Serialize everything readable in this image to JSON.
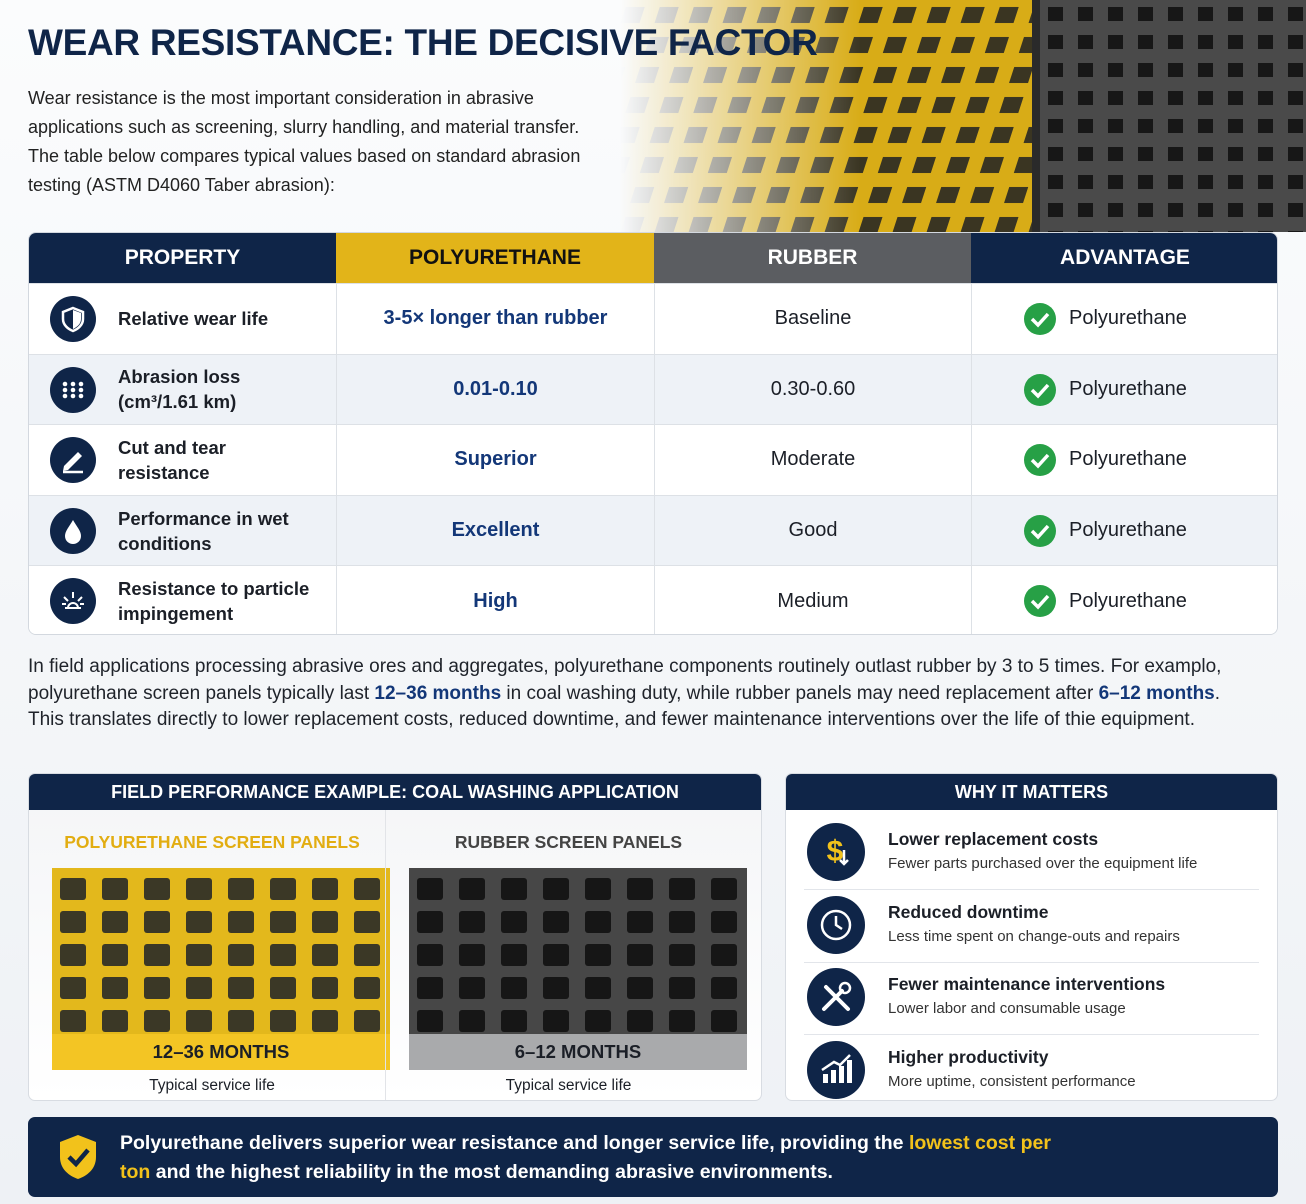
{
  "header": {
    "title": "WEAR RESISTANCE: THE DECISIVE FACTOR",
    "intro": "Wear resistance is the most important consideration in abrasive applications such as screening, slurry handling, and material transfer. The table below compares typical values based on standard abrasion testing (ASTM D4060 Taber abrasion):"
  },
  "table": {
    "headers": [
      "PROPERTY",
      "POLYURETHANE",
      "RUBBER",
      "ADVANTAGE"
    ],
    "rows": [
      [
        "Relative wear life",
        "3-5× longer than rubber",
        "Baseline",
        "Polyurethane"
      ],
      [
        "Abrasion loss (cm³/1.61 km)",
        "0.01-0.10",
        "0.30-0.60",
        "Polyurethane"
      ],
      [
        "Cut and tear resistance",
        "Superior",
        "Moderate",
        "Polyurethane"
      ],
      [
        "Performance in wet conditions",
        "Excellent",
        "Good",
        "Polyurethane"
      ],
      [
        "Resistance to particle impingement",
        "High",
        "Medium",
        "Polyurethane"
      ]
    ]
  },
  "paragraph": [
    "In field applications processing abrasive ores and aggregates, polyurethane components routinely outlast rubber by 3 to 5 times. For examplo, polyurethane screen panels typically last ",
    "12–36 months",
    " in coal washing duty, while rubber panels may need replacement after ",
    "6–12 months",
    ". This translates directly to lower replacement costs, reduced downtime, and fewer maintenance interventions over the life of thie equipment."
  ],
  "field": {
    "title": "FIELD PERFORMANCE EXAMPLE: COAL WASHING APPLICATION",
    "panels": [
      {
        "label": "POLYURETHANE SCREEN PANELS",
        "duration": "12–36 MONTHS",
        "caption": "Typical service life"
      },
      {
        "label": "RUBBER SCREEN PANELS",
        "duration": "6–12 MONTHS",
        "caption": "Typical service life"
      }
    ]
  },
  "why": {
    "title": "WHY IT MATTERS",
    "items": [
      {
        "title": "Lower replacement costs",
        "text": "Fewer parts purchased over the equipment life"
      },
      {
        "title": "Reduced downtime",
        "text": "Less time spent on change-outs and repairs"
      },
      {
        "title": "Fewer maintenance interventions",
        "text": "Lower labor and consumable usage"
      },
      {
        "title": "Higher productivity",
        "text": "More uptime, consistent performance"
      }
    ]
  },
  "footer": [
    "Polyurethane delivers superior wear resistance and longer service life, providing the ",
    "lowest cost per ton",
    " and the highest reliability in the most demanding abrasive environments."
  ]
}
